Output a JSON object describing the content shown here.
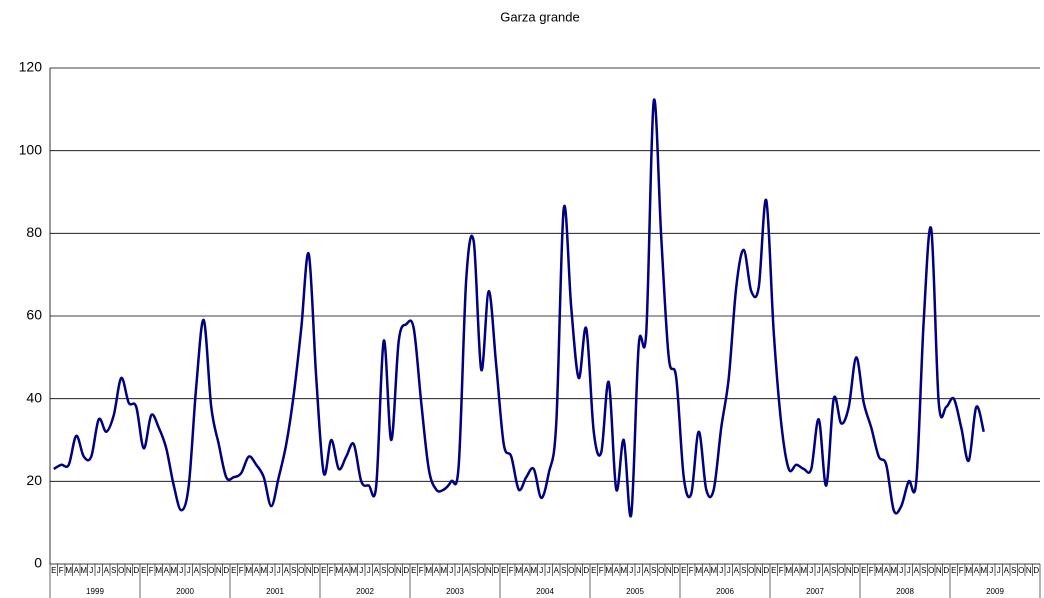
{
  "chart_data": {
    "type": "line",
    "title": "Garza grande",
    "categories": [
      "E",
      "F",
      "M",
      "A",
      "M",
      "J",
      "J",
      "A",
      "S",
      "O",
      "N",
      "D",
      "E",
      "F",
      "M",
      "A",
      "M",
      "J",
      "J",
      "A",
      "S",
      "O",
      "N",
      "D",
      "E",
      "F",
      "M",
      "A",
      "M",
      "J",
      "J",
      "A",
      "S",
      "O",
      "N",
      "D",
      "E",
      "F",
      "M",
      "A",
      "M",
      "J",
      "J",
      "A",
      "S",
      "O",
      "N",
      "D",
      "E",
      "F",
      "M",
      "A",
      "M",
      "J",
      "J",
      "A",
      "S",
      "O",
      "N",
      "D",
      "E",
      "F",
      "M",
      "A",
      "M",
      "J",
      "J",
      "A",
      "S",
      "O",
      "N",
      "D",
      "E",
      "F",
      "M",
      "A",
      "M",
      "J",
      "J",
      "A",
      "S",
      "O",
      "N",
      "D",
      "E",
      "F",
      "M",
      "A",
      "M",
      "J",
      "J",
      "A",
      "S",
      "O",
      "N",
      "D",
      "E",
      "F",
      "M",
      "A",
      "M",
      "J",
      "J",
      "A",
      "S",
      "O",
      "N",
      "D",
      "E",
      "F",
      "M",
      "A",
      "M",
      "J",
      "J",
      "A",
      "S",
      "O",
      "N",
      "D",
      "E",
      "F",
      "M",
      "A",
      "M",
      "J",
      "J",
      "A",
      "S",
      "O",
      "N",
      "D"
    ],
    "years": [
      "1999",
      "2000",
      "2001",
      "2002",
      "2003",
      "2004",
      "2005",
      "2006",
      "2007",
      "2008",
      "2009"
    ],
    "series": [
      {
        "color": "#000080",
        "values": [
          23,
          24,
          24,
          31,
          26,
          26,
          35,
          32,
          36,
          45,
          39,
          38,
          28,
          36,
          33,
          28,
          19,
          13,
          19,
          43,
          59,
          38,
          29,
          21,
          21,
          22,
          26,
          24,
          21,
          14,
          21,
          29,
          41,
          57,
          75,
          45,
          22,
          30,
          23,
          26,
          29,
          20,
          19,
          19,
          54,
          30,
          54,
          58,
          57,
          39,
          23,
          18,
          18,
          20,
          24,
          69,
          78,
          47,
          66,
          48,
          29,
          26,
          18,
          21,
          23,
          16,
          22,
          34,
          86,
          62,
          45,
          57,
          32,
          27,
          44,
          18,
          30,
          12,
          53,
          56,
          112,
          79,
          50,
          45,
          21,
          17,
          32,
          18,
          18,
          33,
          45,
          67,
          76,
          66,
          67,
          88,
          56,
          34,
          23,
          24,
          23,
          23,
          35,
          19,
          40,
          34,
          38,
          50,
          39,
          33,
          26,
          24,
          13,
          14,
          20,
          20,
          59,
          81,
          39,
          38,
          40,
          33,
          25,
          38,
          32,
          null,
          null,
          null,
          null,
          null,
          null,
          null
        ]
      }
    ],
    "ylim": [
      0,
      120
    ],
    "yticks": [
      0,
      20,
      40,
      60,
      80,
      100,
      120
    ],
    "grid": true
  }
}
